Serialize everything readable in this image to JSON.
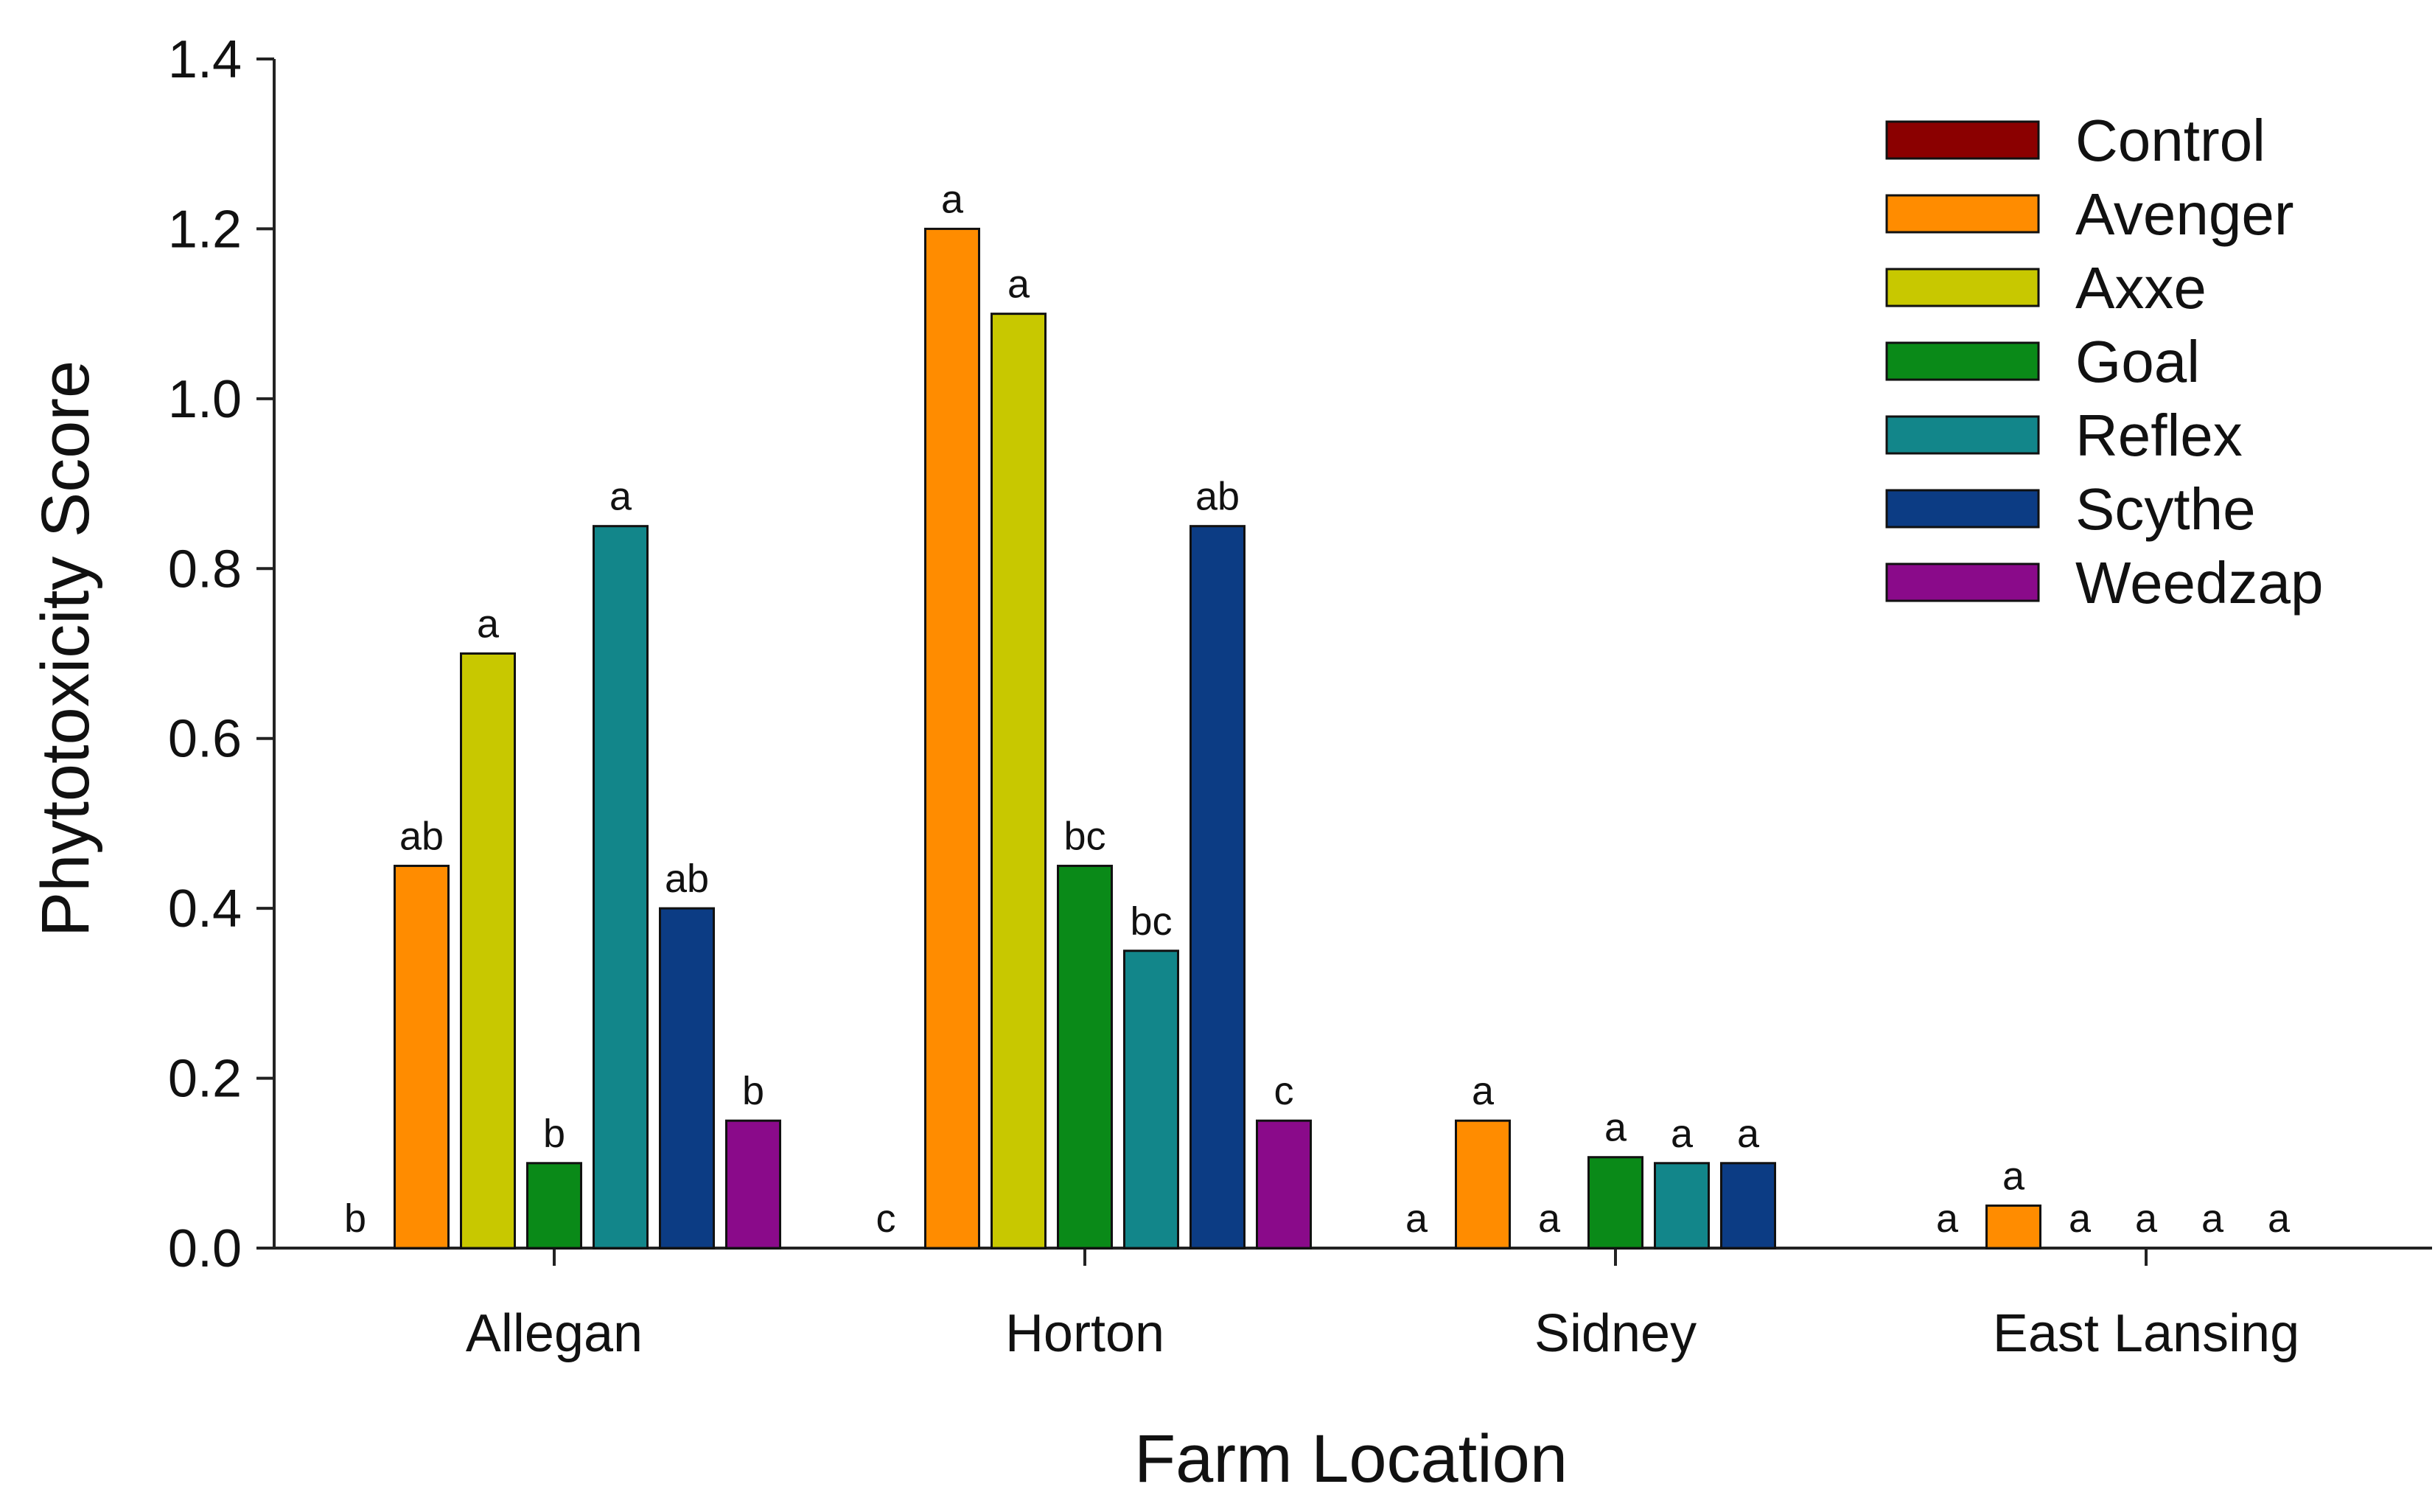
{
  "chart_data": {
    "type": "bar",
    "title": "",
    "xlabel": "Farm Location",
    "ylabel": "Phytotoxicity Score",
    "ylim": [
      0,
      1.4
    ],
    "yticks": [
      "0.0",
      "0.2",
      "0.4",
      "0.6",
      "0.8",
      "1.0",
      "1.2",
      "1.4"
    ],
    "categories": [
      "Allegan",
      "Horton",
      "Sidney",
      "East Lansing"
    ],
    "legend_position": "top-right",
    "grid": false,
    "series": [
      {
        "name": "Control",
        "color": "#8b0000",
        "values": [
          0,
          0,
          0,
          0
        ],
        "labels": [
          "b",
          "c",
          "a",
          "a"
        ]
      },
      {
        "name": "Avenger",
        "color": "#ff8c00",
        "values": [
          0.45,
          1.2,
          0.15,
          0.05
        ],
        "labels": [
          "ab",
          "a",
          "a",
          "a"
        ]
      },
      {
        "name": "Axxe",
        "color": "#c8c800",
        "values": [
          0.7,
          1.1,
          0,
          0
        ],
        "labels": [
          "a",
          "a",
          "a",
          "a"
        ]
      },
      {
        "name": "Goal",
        "color": "#0a8a18",
        "values": [
          0.1,
          0.45,
          0.107,
          0
        ],
        "labels": [
          "b",
          "bc",
          "a",
          "a"
        ]
      },
      {
        "name": "Reflex",
        "color": "#12868a",
        "values": [
          0.85,
          0.35,
          0.1,
          0
        ],
        "labels": [
          "a",
          "bc",
          "a",
          "a"
        ]
      },
      {
        "name": "Scythe",
        "color": "#0c3c84",
        "values": [
          0.4,
          0.85,
          0.1,
          0
        ],
        "labels": [
          "ab",
          "ab",
          "a",
          "a"
        ]
      },
      {
        "name": "Weedzap",
        "color": "#8a0a8a",
        "values": [
          0.15,
          0.15,
          0,
          0
        ],
        "labels": [
          "b",
          "c",
          "",
          ""
        ]
      }
    ]
  }
}
